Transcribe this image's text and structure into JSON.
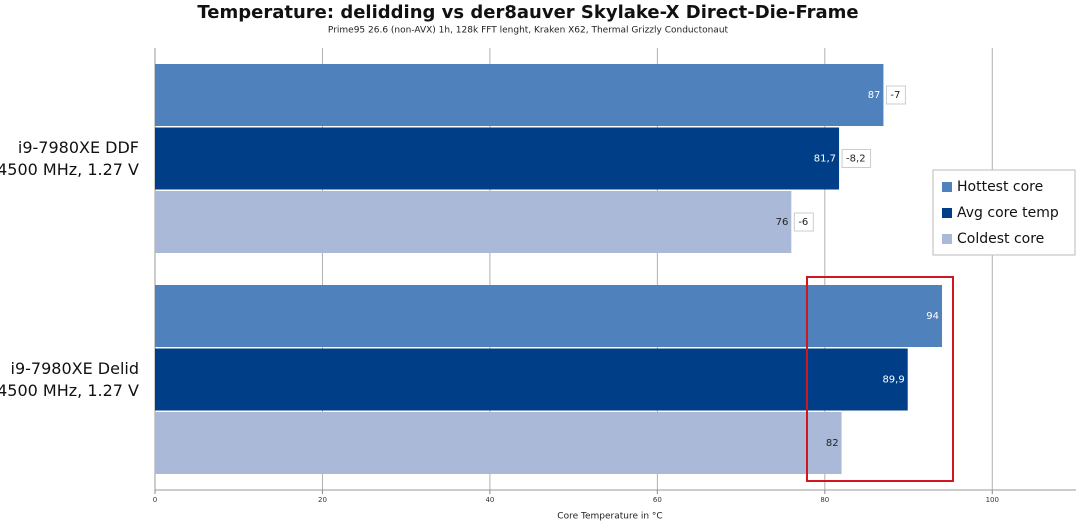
{
  "chart_data": {
    "type": "hbar",
    "title": "Temperature: delidding vs der8auver Skylake-X Direct-Die-Frame",
    "subtitle": "Prime95 26.6 (non-AVX) 1h, 128k FFT lenght, Kraken X62, Thermal Grizzly Conductonaut",
    "x_label": "Core Temperature in °C",
    "categories": [
      "i9-7980XE DDF\n4500 MHz, 1.27 V",
      "i9-7980XE Delid\n4500 MHz, 1.27 V"
    ],
    "series": [
      {
        "name": "Hottest core",
        "color": "#4f81bd",
        "label_color": "#ffffff",
        "values": [
          87,
          94
        ],
        "value_labels": [
          "87",
          "94"
        ],
        "deltas": [
          -7,
          null
        ],
        "delta_labels": [
          "-7",
          null
        ]
      },
      {
        "name": "Avg core temp",
        "color": "#003f87",
        "label_color": "#ffffff",
        "values": [
          81.7,
          89.9
        ],
        "value_labels": [
          "81,7",
          "89,9"
        ],
        "deltas": [
          -8.2,
          null
        ],
        "delta_labels": [
          "-8,2",
          null
        ]
      },
      {
        "name": "Coldest core",
        "color": "#aab9d8",
        "label_color": "#222222",
        "values": [
          76,
          82
        ],
        "value_labels": [
          "76",
          "82"
        ],
        "deltas": [
          -6,
          null
        ],
        "delta_labels": [
          "-6",
          null
        ]
      }
    ],
    "xlim": [
      0,
      110
    ],
    "xticks": [
      0,
      20,
      40,
      60,
      80,
      100
    ],
    "grid": true,
    "legend": "right"
  }
}
